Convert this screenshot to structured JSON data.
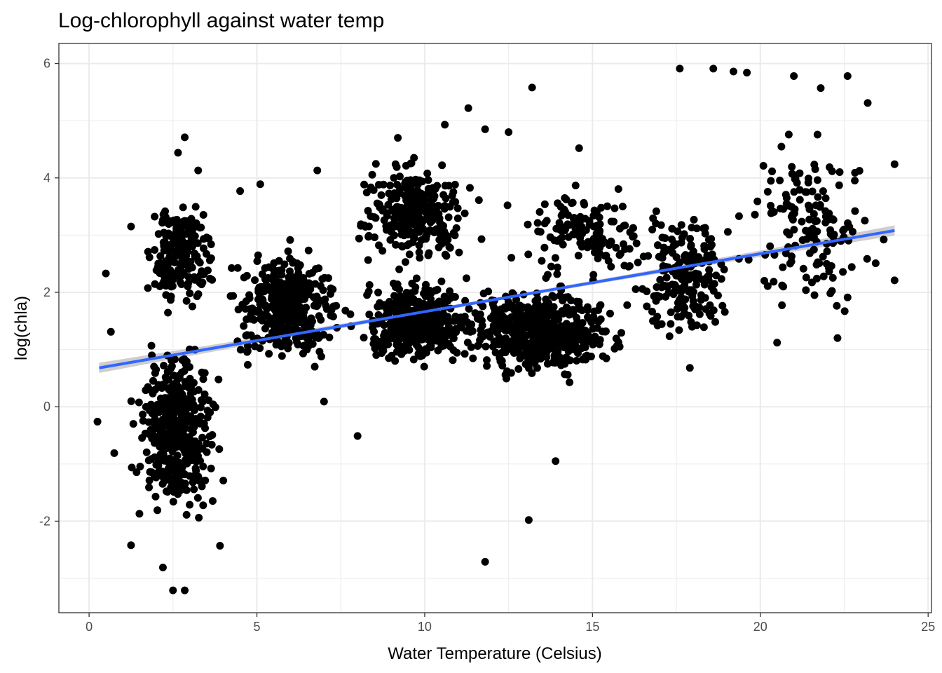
{
  "chart_data": {
    "type": "scatter",
    "title": "Log-chlorophyll against water temp",
    "xlabel": "Water Temperature (Celsius)",
    "ylabel": "log(chla)",
    "xlim": [
      -0.9,
      25.1
    ],
    "ylim": [
      -3.6,
      6.35
    ],
    "x_ticks": [
      0,
      5,
      10,
      15,
      20,
      25
    ],
    "x_tick_labels": [
      "0",
      "5",
      "10",
      "15",
      "20",
      "25"
    ],
    "y_ticks": [
      -2,
      0,
      2,
      4,
      6
    ],
    "y_tick_labels": [
      "-2",
      "0",
      "2",
      "4",
      "6"
    ],
    "grid": true,
    "legend": "none",
    "colors": {
      "points": "#000000",
      "trend_line": "#3366FF",
      "confidence_band": "#bebebe",
      "grid": "#ebebeb",
      "panel_border": "#333333",
      "tick_label": "#4d4d4d"
    },
    "trend_line": {
      "method": "linear fit",
      "x": [
        0.3,
        24.0
      ],
      "y": [
        0.68,
        3.08
      ],
      "ci_halfwidth_ends": 0.09,
      "ci_halfwidth_center": 0.03
    },
    "highlighted_points": [
      {
        "x": 0.25,
        "y": -0.26
      },
      {
        "x": 0.5,
        "y": 2.33
      },
      {
        "x": 0.65,
        "y": 1.31
      },
      {
        "x": 0.75,
        "y": -0.81
      },
      {
        "x": 1.25,
        "y": 3.15
      },
      {
        "x": 1.25,
        "y": -2.42
      },
      {
        "x": 1.5,
        "y": -1.87
      },
      {
        "x": 2.2,
        "y": -2.81
      },
      {
        "x": 2.5,
        "y": -3.21
      },
      {
        "x": 2.85,
        "y": -3.21
      },
      {
        "x": 2.65,
        "y": 4.44
      },
      {
        "x": 2.85,
        "y": 4.71
      },
      {
        "x": 3.25,
        "y": 4.13
      },
      {
        "x": 3.9,
        "y": -2.43
      },
      {
        "x": 4.0,
        "y": -1.29
      },
      {
        "x": 4.5,
        "y": 3.77
      },
      {
        "x": 5.1,
        "y": 3.89
      },
      {
        "x": 6.8,
        "y": 4.13
      },
      {
        "x": 7.0,
        "y": 0.09
      },
      {
        "x": 8.0,
        "y": -0.51
      },
      {
        "x": 9.2,
        "y": 4.7
      },
      {
        "x": 10.6,
        "y": 4.93
      },
      {
        "x": 11.3,
        "y": 5.22
      },
      {
        "x": 11.8,
        "y": -2.71
      },
      {
        "x": 11.8,
        "y": 4.85
      },
      {
        "x": 12.5,
        "y": 4.8
      },
      {
        "x": 13.1,
        "y": -1.98
      },
      {
        "x": 13.2,
        "y": 5.58
      },
      {
        "x": 13.9,
        "y": -0.95
      },
      {
        "x": 17.6,
        "y": 5.91
      },
      {
        "x": 18.6,
        "y": 5.91
      },
      {
        "x": 19.2,
        "y": 5.86
      },
      {
        "x": 19.6,
        "y": 5.84
      },
      {
        "x": 21.0,
        "y": 5.78
      },
      {
        "x": 22.6,
        "y": 5.78
      },
      {
        "x": 21.8,
        "y": 5.57
      },
      {
        "x": 23.2,
        "y": 5.31
      },
      {
        "x": 24.0,
        "y": 4.24
      },
      {
        "x": 24.0,
        "y": 2.21
      },
      {
        "x": 22.3,
        "y": 1.2
      },
      {
        "x": 20.5,
        "y": 1.12
      },
      {
        "x": 17.9,
        "y": 0.68
      },
      {
        "x": 16.8,
        "y": 1.5
      },
      {
        "x": 14.6,
        "y": 4.52
      }
    ],
    "point_clusters": [
      {
        "x": [
          1.0,
          4.2
        ],
        "y": [
          -2.3,
          1.4
        ],
        "count": 420
      },
      {
        "x": [
          1.5,
          4.0
        ],
        "y": [
          1.3,
          4.0
        ],
        "count": 200
      },
      {
        "x": [
          3.8,
          8.0
        ],
        "y": [
          0.5,
          3.0
        ],
        "count": 400
      },
      {
        "x": [
          7.5,
          12.0
        ],
        "y": [
          0.5,
          2.5
        ],
        "count": 400
      },
      {
        "x": [
          7.5,
          11.8
        ],
        "y": [
          2.2,
          4.6
        ],
        "count": 280
      },
      {
        "x": [
          10.5,
          16.5
        ],
        "y": [
          0.3,
          2.4
        ],
        "count": 520
      },
      {
        "x": [
          12.0,
          17.5
        ],
        "y": [
          2.0,
          4.0
        ],
        "count": 140
      },
      {
        "x": [
          16.0,
          19.5
        ],
        "y": [
          0.8,
          3.8
        ],
        "count": 190
      },
      {
        "x": [
          19.0,
          24.0
        ],
        "y": [
          1.2,
          5.2
        ],
        "count": 150
      }
    ]
  }
}
